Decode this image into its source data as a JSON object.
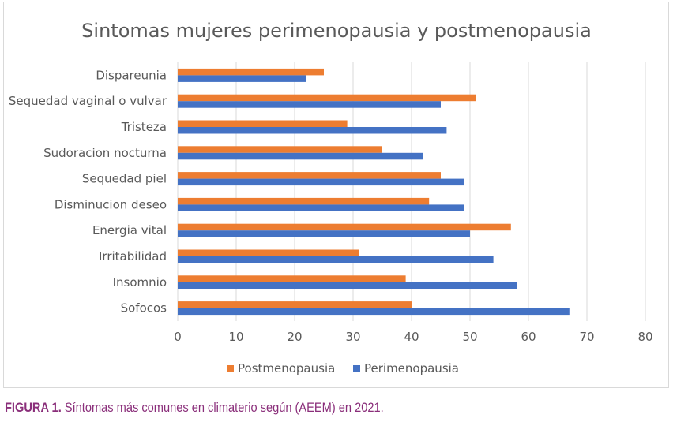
{
  "colors": {
    "post": "#ED7D31",
    "peri": "#4472C4",
    "grid": "#d9d9d9",
    "text": "#595959",
    "caption": "#8a2e7a"
  },
  "caption": {
    "label": "FIGURA 1.",
    "text": "Síntomas más comunes en climaterio según (AEEM) en 2021."
  },
  "chart_data": {
    "type": "bar",
    "orientation": "horizontal",
    "title": "Sintomas mujeres perimenopausia y postmenopausia",
    "xlabel": "",
    "ylabel": "",
    "xlim": [
      0,
      80
    ],
    "xticks": [
      0,
      10,
      20,
      30,
      40,
      50,
      60,
      70,
      80
    ],
    "grid": true,
    "legend_position": "bottom",
    "categories": [
      "Dispareunia",
      "Sequedad vaginal o vulvar",
      "Tristeza",
      "Sudoracion nocturna",
      "Sequedad piel",
      "Disminucion deseo",
      "Energia vital",
      "Irritabilidad",
      "Insomnio",
      "Sofocos"
    ],
    "series": [
      {
        "name": "Postmenopausia",
        "color": "#ED7D31",
        "values": [
          25,
          51,
          29,
          35,
          45,
          43,
          57,
          31,
          39,
          40
        ]
      },
      {
        "name": "Perimenopausia",
        "color": "#4472C4",
        "values": [
          22,
          45,
          46,
          42,
          49,
          49,
          50,
          54,
          58,
          67
        ]
      }
    ]
  }
}
